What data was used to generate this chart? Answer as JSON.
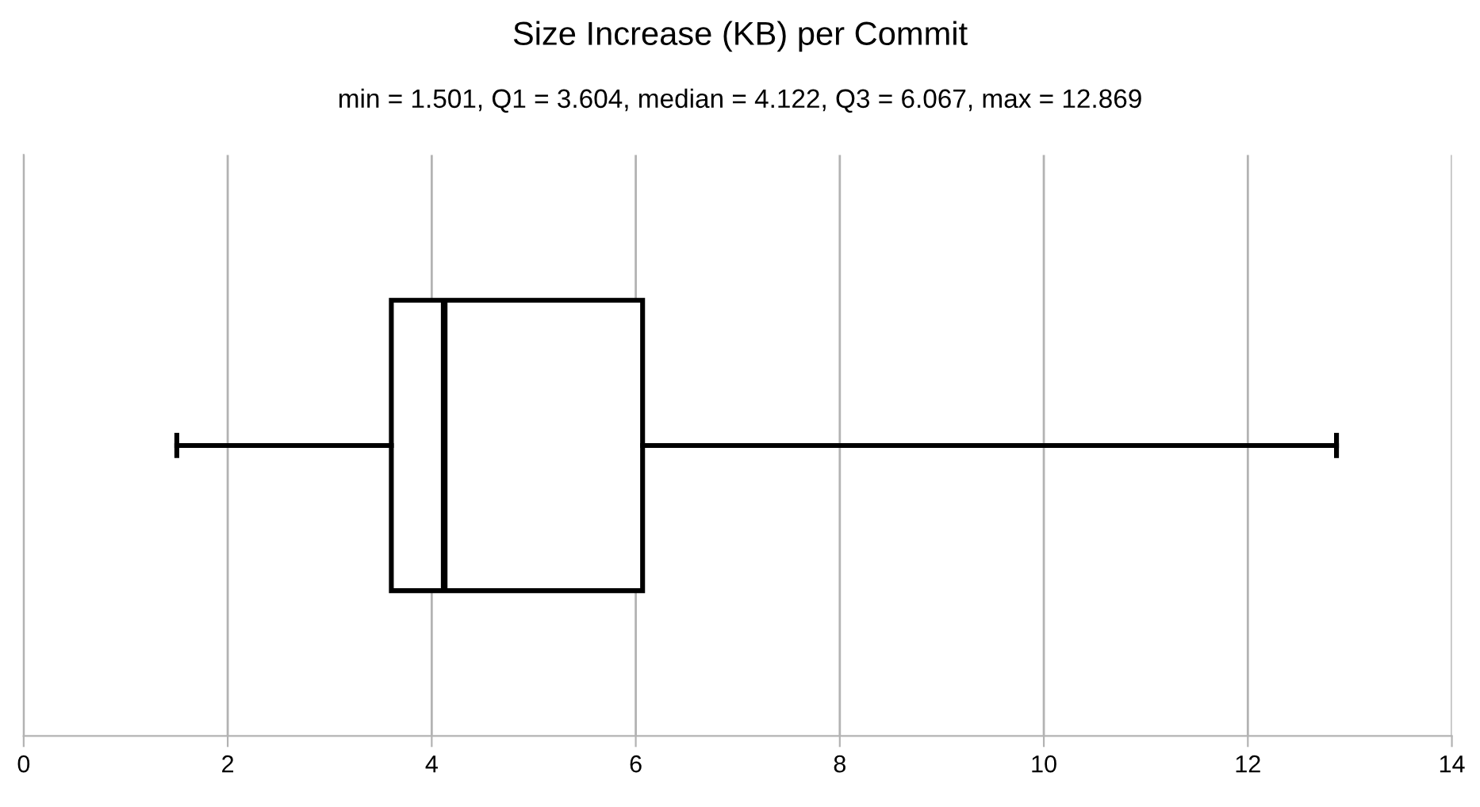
{
  "chart_data": {
    "type": "box",
    "title": "Size Increase (KB) per Commit",
    "subtitle": "min = 1.501, Q1 = 3.604, median = 4.122, Q3 = 6.067, max = 12.869",
    "orientation": "horizontal",
    "categories": [
      null
    ],
    "series": [
      {
        "color": "#000000",
        "boxes": [
          {
            "low": 1.501,
            "q1": 3.604,
            "median": 4.122,
            "q3": 6.067,
            "high": 12.869
          }
        ]
      }
    ],
    "xlim": [
      0,
      14
    ],
    "xticks": [
      0,
      2,
      4,
      6,
      8,
      10,
      12,
      14
    ],
    "grid": "x",
    "tick_labels": "x"
  }
}
